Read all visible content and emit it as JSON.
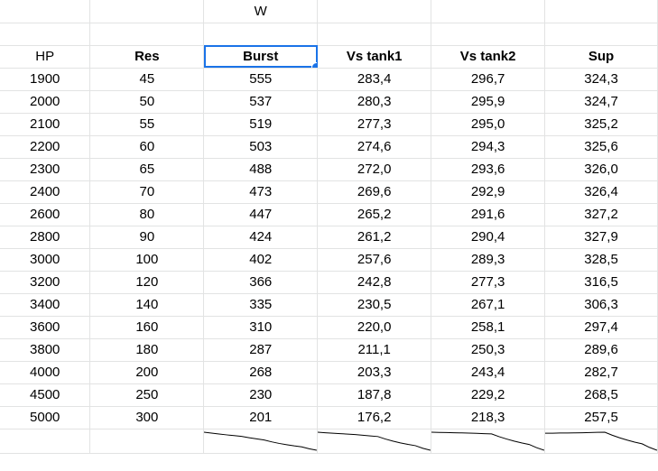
{
  "top_label": "W",
  "headers": [
    "HP",
    "Res",
    "Burst",
    "Vs tank1",
    "Vs tank2",
    "Sup"
  ],
  "selected_cell": "Burst",
  "rows": [
    [
      "1900",
      "45",
      "555",
      "283,4",
      "296,7",
      "324,3"
    ],
    [
      "2000",
      "50",
      "537",
      "280,3",
      "295,9",
      "324,7"
    ],
    [
      "2100",
      "55",
      "519",
      "277,3",
      "295,0",
      "325,2"
    ],
    [
      "2200",
      "60",
      "503",
      "274,6",
      "294,3",
      "325,6"
    ],
    [
      "2300",
      "65",
      "488",
      "272,0",
      "293,6",
      "326,0"
    ],
    [
      "2400",
      "70",
      "473",
      "269,6",
      "292,9",
      "326,4"
    ],
    [
      "2600",
      "80",
      "447",
      "265,2",
      "291,6",
      "327,2"
    ],
    [
      "2800",
      "90",
      "424",
      "261,2",
      "290,4",
      "327,9"
    ],
    [
      "3000",
      "100",
      "402",
      "257,6",
      "289,3",
      "328,5"
    ],
    [
      "3200",
      "120",
      "366",
      "242,8",
      "277,3",
      "316,5"
    ],
    [
      "3400",
      "140",
      "335",
      "230,5",
      "267,1",
      "306,3"
    ],
    [
      "3600",
      "160",
      "310",
      "220,0",
      "258,1",
      "297,4"
    ],
    [
      "3800",
      "180",
      "287",
      "211,1",
      "250,3",
      "289,6"
    ],
    [
      "4000",
      "200",
      "268",
      "203,3",
      "243,4",
      "282,7"
    ],
    [
      "4500",
      "250",
      "230",
      "187,8",
      "229,2",
      "268,5"
    ],
    [
      "5000",
      "300",
      "201",
      "176,2",
      "218,3",
      "257,5"
    ]
  ],
  "sparklines": {
    "burst": [
      555,
      537,
      519,
      503,
      488,
      473,
      447,
      424,
      402,
      366,
      335,
      310,
      287,
      268,
      230,
      201
    ],
    "vs_tank1": [
      283.4,
      280.3,
      277.3,
      274.6,
      272.0,
      269.6,
      265.2,
      261.2,
      257.6,
      242.8,
      230.5,
      220.0,
      211.1,
      203.3,
      187.8,
      176.2
    ],
    "vs_tank2": [
      296.7,
      295.9,
      295.0,
      294.3,
      293.6,
      292.9,
      291.6,
      290.4,
      289.3,
      277.3,
      267.1,
      258.1,
      250.3,
      243.4,
      229.2,
      218.3
    ],
    "sup": [
      324.3,
      324.7,
      325.2,
      325.6,
      326.0,
      326.4,
      327.2,
      327.9,
      328.5,
      316.5,
      306.3,
      297.4,
      289.6,
      282.7,
      268.5,
      257.5
    ]
  },
  "colors": {
    "grid_line": "#e2e3e3",
    "selection": "#1a73e8",
    "sparkline": "#000000"
  }
}
